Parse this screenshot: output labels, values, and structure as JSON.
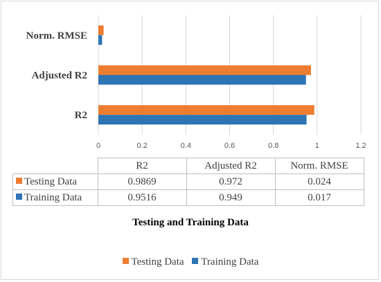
{
  "chart_data": {
    "type": "bar",
    "orientation": "horizontal",
    "title": "Testing and Training  Data",
    "categories": [
      "R2",
      "Adjusted R2",
      "Norm. RMSE"
    ],
    "series": [
      {
        "name": "Testing Data",
        "color": "#ed7d31",
        "values": [
          0.9869,
          0.972,
          0.024
        ]
      },
      {
        "name": "Training Data",
        "color": "#2e75b6",
        "values": [
          0.9516,
          0.949,
          0.017
        ]
      }
    ],
    "xlim": [
      0,
      1.2
    ],
    "ticks": [
      "0",
      "0.2",
      "0.4",
      "0.6",
      "0.8",
      "1",
      "1.2"
    ],
    "grid": true,
    "legend": "bottom",
    "data_table": true
  }
}
